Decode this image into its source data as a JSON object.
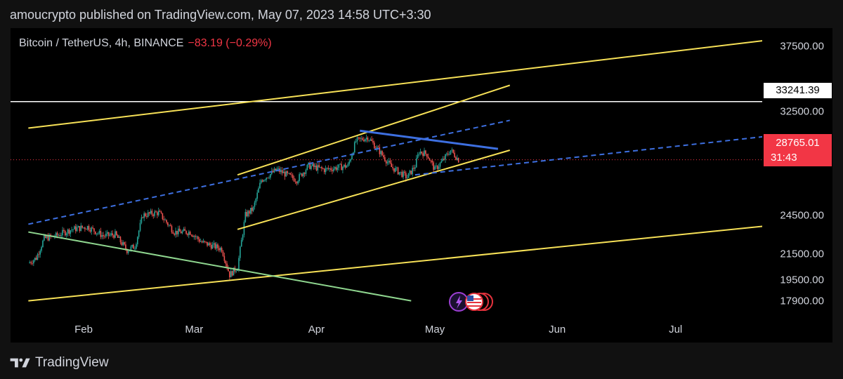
{
  "header": {
    "text": "amoucrypto published on TradingView.com, May 07, 2023 14:58 UTC+3:30"
  },
  "legend": {
    "symbol": "Bitcoin / TetherUS, 4h, BINANCE",
    "change": "−83.19 (−0.29%)"
  },
  "footer": {
    "brand": "TradingView"
  },
  "price_labels": {
    "white_level": "33241.39",
    "current_price": "28765.01",
    "countdown": "31:43"
  },
  "colors": {
    "up": "#26a69a",
    "down": "#ef5350",
    "channel": "#f7e157",
    "trend_blue": "#3d6fe0",
    "dashed": "#4d8fd6",
    "green_line": "#8fd68f",
    "white_level": "#ffffff",
    "price_tag": "#f23645"
  },
  "icons": [
    "lightning-icon",
    "us-flag-icon",
    "event-marker-icon"
  ],
  "chart_data": {
    "type": "candlestick",
    "title": "Bitcoin / TetherUS, 4h, BINANCE",
    "y_ticks": [
      "37500.00",
      "32500.00",
      "24500.00",
      "21500.00",
      "19500.00",
      "17900.00"
    ],
    "x_ticks": [
      "Feb",
      "Mar",
      "Apr",
      "May",
      "Jun",
      "Jul"
    ],
    "price_path": [
      {
        "date": "2023-01-18",
        "price": 20800
      },
      {
        "date": "2023-01-20",
        "price": 21200
      },
      {
        "date": "2023-01-22",
        "price": 22700
      },
      {
        "date": "2023-01-25",
        "price": 22900
      },
      {
        "date": "2023-01-29",
        "price": 23400
      },
      {
        "date": "2023-02-02",
        "price": 23600
      },
      {
        "date": "2023-02-06",
        "price": 22900
      },
      {
        "date": "2023-02-09",
        "price": 23000
      },
      {
        "date": "2023-02-12",
        "price": 21800
      },
      {
        "date": "2023-02-14",
        "price": 22100
      },
      {
        "date": "2023-02-16",
        "price": 24500
      },
      {
        "date": "2023-02-20",
        "price": 24700
      },
      {
        "date": "2023-02-24",
        "price": 23200
      },
      {
        "date": "2023-02-28",
        "price": 23200
      },
      {
        "date": "2023-03-03",
        "price": 22400
      },
      {
        "date": "2023-03-08",
        "price": 21900
      },
      {
        "date": "2023-03-10",
        "price": 19900
      },
      {
        "date": "2023-03-12",
        "price": 20500
      },
      {
        "date": "2023-03-14",
        "price": 24500
      },
      {
        "date": "2023-03-16",
        "price": 25000
      },
      {
        "date": "2023-03-18",
        "price": 27200
      },
      {
        "date": "2023-03-22",
        "price": 28000
      },
      {
        "date": "2023-03-27",
        "price": 27200
      },
      {
        "date": "2023-03-30",
        "price": 28300
      },
      {
        "date": "2023-04-03",
        "price": 28000
      },
      {
        "date": "2023-04-09",
        "price": 28300
      },
      {
        "date": "2023-04-11",
        "price": 30200
      },
      {
        "date": "2023-04-14",
        "price": 30500
      },
      {
        "date": "2023-04-17",
        "price": 29400
      },
      {
        "date": "2023-04-20",
        "price": 28200
      },
      {
        "date": "2023-04-24",
        "price": 27400
      },
      {
        "date": "2023-04-26",
        "price": 28300
      },
      {
        "date": "2023-04-27",
        "price": 29400
      },
      {
        "date": "2023-04-29",
        "price": 29200
      },
      {
        "date": "2023-05-01",
        "price": 28000
      },
      {
        "date": "2023-05-03",
        "price": 28700
      },
      {
        "date": "2023-05-05",
        "price": 29500
      },
      {
        "date": "2023-05-07",
        "price": 28765
      }
    ],
    "horizontal_levels": [
      {
        "price": 33241.39,
        "style": "solid",
        "color": "white"
      },
      {
        "price": 28765.01,
        "style": "dotted",
        "color": "red"
      }
    ],
    "trend_lines": [
      {
        "name": "upper-long-channel",
        "from": {
          "date": "2023-01-18",
          "price": 31200
        },
        "to": {
          "date": "2023-07-25",
          "price": 38000
        },
        "style": "solid",
        "color": "yellow"
      },
      {
        "name": "lower-long-channel",
        "from": {
          "date": "2023-01-18",
          "price": 17900
        },
        "to": {
          "date": "2023-07-25",
          "price": 23700
        },
        "style": "solid",
        "color": "yellow"
      },
      {
        "name": "mid-channel-upper",
        "from": {
          "date": "2023-03-12",
          "price": 27600
        },
        "to": {
          "date": "2023-05-20",
          "price": 34500
        },
        "style": "solid",
        "color": "yellow"
      },
      {
        "name": "mid-channel-lower",
        "from": {
          "date": "2023-03-12",
          "price": 23400
        },
        "to": {
          "date": "2023-05-20",
          "price": 29500
        },
        "style": "solid",
        "color": "yellow"
      },
      {
        "name": "descending-resistance",
        "from": {
          "date": "2023-04-12",
          "price": 31000
        },
        "to": {
          "date": "2023-05-17",
          "price": 29600
        },
        "style": "solid",
        "color": "blue"
      },
      {
        "name": "dashed-trend-1",
        "from": {
          "date": "2023-01-18",
          "price": 23800
        },
        "to": {
          "date": "2023-05-20",
          "price": 31800
        },
        "style": "dashed",
        "color": "blue"
      },
      {
        "name": "dashed-trend-2",
        "from": {
          "date": "2023-04-26",
          "price": 27600
        },
        "to": {
          "date": "2023-07-25",
          "price": 30600
        },
        "style": "dashed",
        "color": "blue"
      },
      {
        "name": "green-descending",
        "from": {
          "date": "2023-01-18",
          "price": 23200
        },
        "to": {
          "date": "2023-04-25",
          "price": 17900
        },
        "style": "solid",
        "color": "green"
      }
    ]
  }
}
